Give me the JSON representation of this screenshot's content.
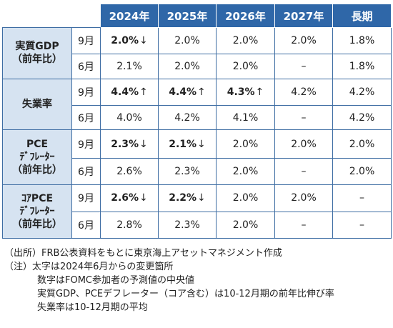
{
  "chart_data": {
    "type": "table",
    "columns": [
      "2024年",
      "2025年",
      "2026年",
      "2027年",
      "長期"
    ],
    "groups": [
      {
        "name_lines": [
          "実質GDP",
          "（前年比）"
        ],
        "rows": [
          {
            "month": "9月",
            "cells": [
              {
                "text": "2.0%",
                "bold": true,
                "arrow": "↓"
              },
              {
                "text": "2.0%"
              },
              {
                "text": "2.0%"
              },
              {
                "text": "2.0%"
              },
              {
                "text": "1.8%"
              }
            ]
          },
          {
            "month": "6月",
            "cells": [
              {
                "text": "2.1%"
              },
              {
                "text": "2.0%"
              },
              {
                "text": "2.0%"
              },
              {
                "text": "–"
              },
              {
                "text": "1.8%"
              }
            ]
          }
        ]
      },
      {
        "name_lines": [
          "失業率"
        ],
        "rows": [
          {
            "month": "9月",
            "cells": [
              {
                "text": "4.4%",
                "bold": true,
                "arrow": "↑"
              },
              {
                "text": "4.4%",
                "bold": true,
                "arrow": "↑"
              },
              {
                "text": "4.3%",
                "bold": true,
                "arrow": "↑"
              },
              {
                "text": "4.2%"
              },
              {
                "text": "4.2%"
              }
            ]
          },
          {
            "month": "6月",
            "cells": [
              {
                "text": "4.0%"
              },
              {
                "text": "4.2%"
              },
              {
                "text": "4.1%"
              },
              {
                "text": "–"
              },
              {
                "text": "4.2%"
              }
            ]
          }
        ]
      },
      {
        "name_lines": [
          "PCE",
          "ﾃﾞﾌﾚｰﾀｰ",
          "（前年比）"
        ],
        "rows": [
          {
            "month": "9月",
            "cells": [
              {
                "text": "2.3%",
                "bold": true,
                "arrow": "↓"
              },
              {
                "text": "2.1%",
                "bold": true,
                "arrow": "↓"
              },
              {
                "text": "2.0%"
              },
              {
                "text": "2.0%"
              },
              {
                "text": "2.0%"
              }
            ]
          },
          {
            "month": "6月",
            "cells": [
              {
                "text": "2.6%"
              },
              {
                "text": "2.3%"
              },
              {
                "text": "2.0%"
              },
              {
                "text": "–"
              },
              {
                "text": "2.0%"
              }
            ]
          }
        ]
      },
      {
        "name_lines": [
          "ｺｱPCE",
          "ﾃﾞﾌﾚｰﾀｰ",
          "（前年比）"
        ],
        "rows": [
          {
            "month": "9月",
            "cells": [
              {
                "text": "2.6%",
                "bold": true,
                "arrow": "↓"
              },
              {
                "text": "2.2%",
                "bold": true,
                "arrow": "↓"
              },
              {
                "text": "2.0%"
              },
              {
                "text": "2.0%"
              },
              {
                "text": "–"
              }
            ]
          },
          {
            "month": "6月",
            "cells": [
              {
                "text": "2.8%"
              },
              {
                "text": "2.3%"
              },
              {
                "text": "2.0%"
              },
              {
                "text": "–"
              },
              {
                "text": "–"
              }
            ]
          }
        ]
      }
    ]
  },
  "notes": [
    "（出所）FRB公表資料をもとに東京海上アセットマネジメント作成",
    "（注）太字は2024年6月からの変更箇所",
    "数字はFOMC参加者の予測値の中央値",
    "実質GDP、PCEデフレーター（コア含む）は10-12月期の前年比伸び率",
    "失業率は10-12月期の平均"
  ],
  "colors": {
    "header_bg": "#2f67a8",
    "label_bg": "#d6e3f1",
    "border": "#3e6da3"
  }
}
